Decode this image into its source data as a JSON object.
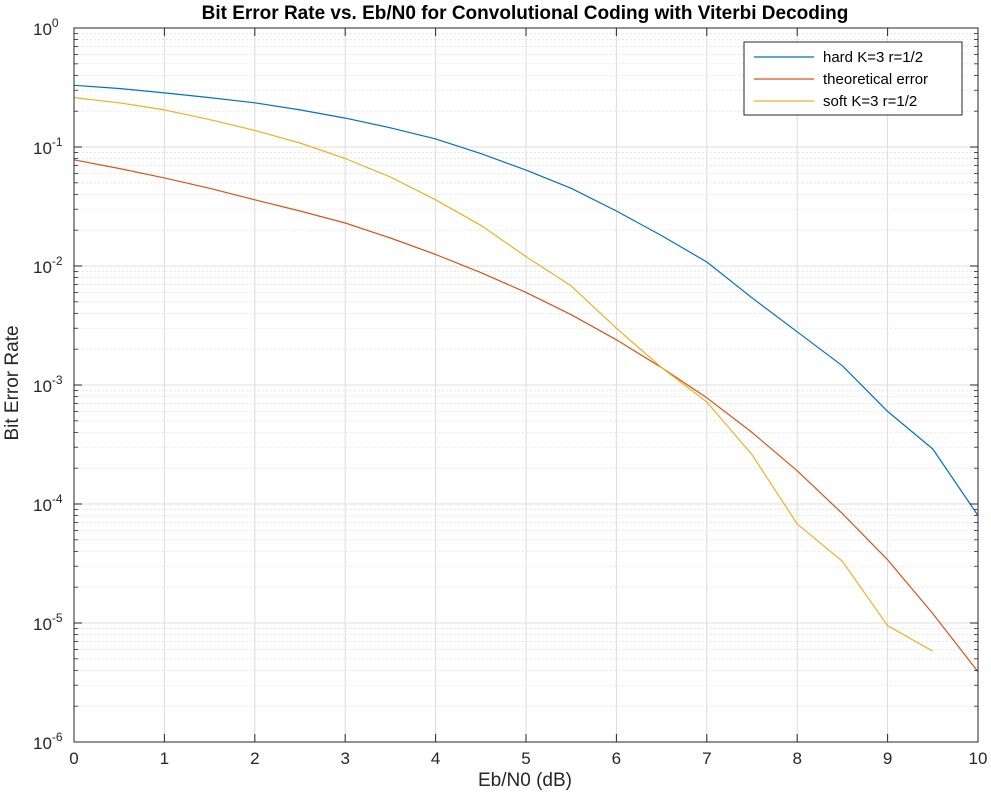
{
  "chart_data": {
    "type": "line",
    "title": "Bit Error Rate vs. Eb/N0 for Convolutional Coding with Viterbi Decoding",
    "xlabel": "Eb/N0 (dB)",
    "ylabel": "Bit Error Rate",
    "xlim": [
      0,
      10
    ],
    "ylim": [
      1e-06,
      1
    ],
    "yscale": "log",
    "grid": true,
    "minor_grid": true,
    "legend_position": "top-right",
    "x_ticks": [
      "0",
      "1",
      "2",
      "3",
      "4",
      "5",
      "6",
      "7",
      "8",
      "9",
      "10"
    ],
    "y_ticks": [
      {
        "base": "10",
        "exp": "-6",
        "value": 1e-06
      },
      {
        "base": "10",
        "exp": "-5",
        "value": 1e-05
      },
      {
        "base": "10",
        "exp": "-4",
        "value": 0.0001
      },
      {
        "base": "10",
        "exp": "-3",
        "value": 0.001
      },
      {
        "base": "10",
        "exp": "-2",
        "value": 0.01
      },
      {
        "base": "10",
        "exp": "-1",
        "value": 0.1
      },
      {
        "base": "10",
        "exp": "0",
        "value": 1
      }
    ],
    "series": [
      {
        "name": "hard K=3 r=1/2",
        "color": "#0072BD",
        "x": [
          0,
          0.5,
          1,
          1.5,
          2,
          2.5,
          3,
          3.5,
          4,
          4.5,
          5,
          5.5,
          6,
          6.5,
          7,
          7.5,
          8,
          8.5,
          9,
          9.5,
          10
        ],
        "y": [
          0.33,
          0.31,
          0.285,
          0.26,
          0.235,
          0.205,
          0.175,
          0.145,
          0.117,
          0.088,
          0.064,
          0.045,
          0.029,
          0.018,
          0.0108,
          0.0054,
          0.0028,
          0.00145,
          0.0006,
          0.00029,
          8e-05
        ]
      },
      {
        "name": "theoretical error",
        "color": "#D95319",
        "x": [
          0,
          0.5,
          1,
          1.5,
          2,
          2.5,
          3,
          3.5,
          4,
          4.5,
          5,
          5.5,
          6,
          6.5,
          7,
          7.5,
          8,
          8.5,
          9,
          9.5,
          10
        ],
        "y": [
          0.078,
          0.066,
          0.055,
          0.045,
          0.036,
          0.029,
          0.023,
          0.0172,
          0.0125,
          0.0088,
          0.006,
          0.0039,
          0.0024,
          0.0014,
          0.00078,
          0.0004,
          0.00019,
          8.3e-05,
          3.4e-05,
          1.2e-05,
          3.9e-06
        ]
      },
      {
        "name": "soft K=3 r=1/2",
        "color": "#EDB120",
        "x": [
          0,
          0.5,
          1,
          1.5,
          2,
          2.5,
          3,
          3.5,
          4,
          4.5,
          5,
          5.5,
          6,
          6.5,
          7,
          7.5,
          8,
          8.5,
          9,
          9.5
        ],
        "y": [
          0.26,
          0.235,
          0.205,
          0.17,
          0.138,
          0.108,
          0.08,
          0.056,
          0.036,
          0.022,
          0.012,
          0.0068,
          0.003,
          0.0014,
          0.00072,
          0.00026,
          6.8e-05,
          3.3e-05,
          9.5e-06,
          5.8e-06
        ]
      }
    ]
  }
}
